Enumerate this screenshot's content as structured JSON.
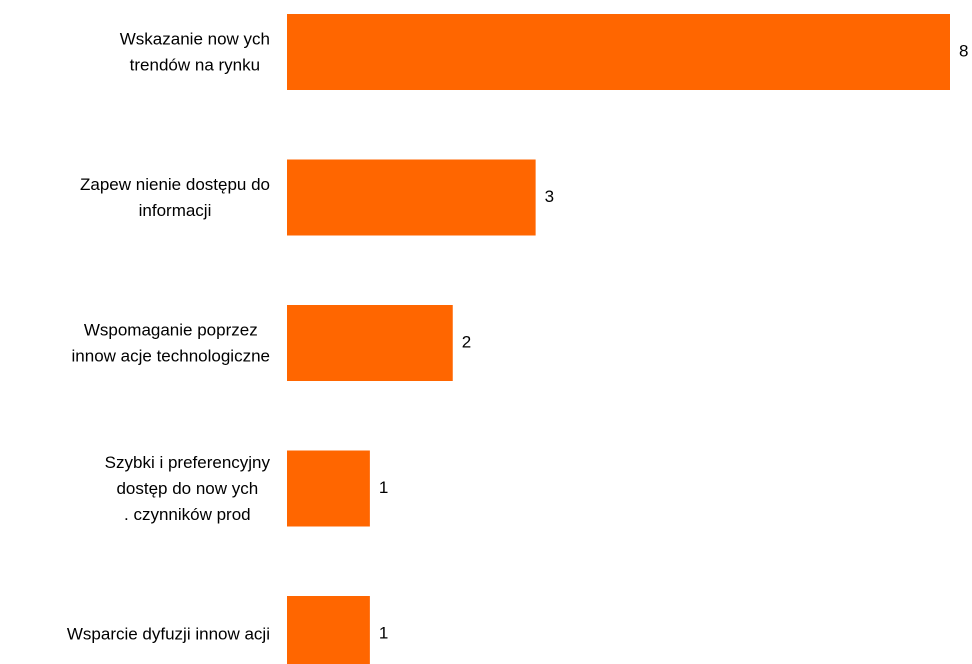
{
  "chart_data": {
    "type": "bar",
    "orientation": "horizontal",
    "categories": [
      [
        "Wskazanie now ych",
        "trendów  na rynku"
      ],
      [
        "Zapew nienie dostępu do",
        "informacji"
      ],
      [
        "Wspomaganie poprzez",
        "innow acje technologiczne"
      ],
      [
        "Szybki i preferencyjny",
        "dostęp do now ych",
        ". czynników  prod"
      ],
      [
        "Wsparcie dyfuzji innow acji"
      ]
    ],
    "values": [
      8,
      3,
      2,
      1,
      1
    ],
    "data_labels": [
      "8",
      "3",
      "2",
      "1",
      "1"
    ],
    "bar_color": "#FF6600",
    "grid": false,
    "legend": "none",
    "xlim": [
      0,
      8
    ]
  }
}
